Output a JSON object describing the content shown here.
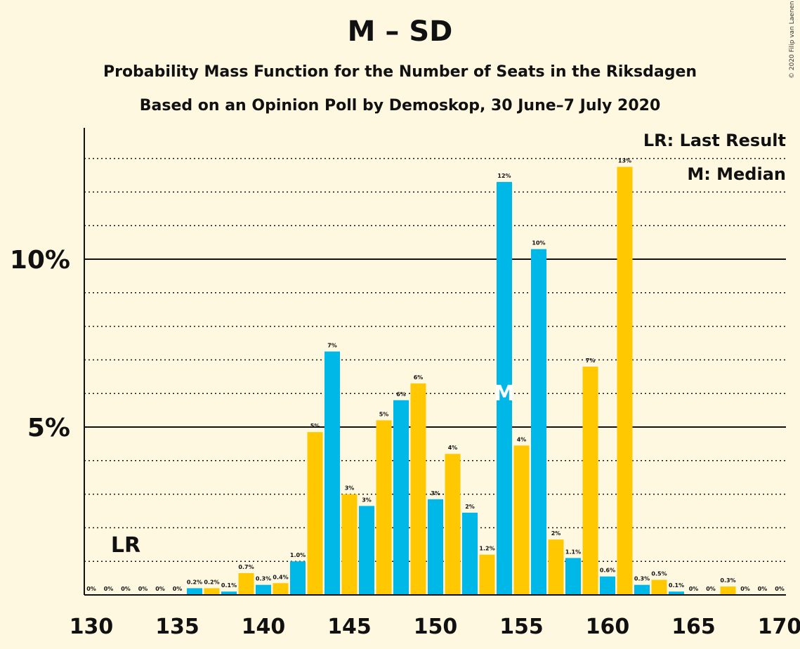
{
  "title": "M – SD",
  "subtitle1": "Probability Mass Function for the Number of Seats in the Riksdagen",
  "subtitle2": "Based on an Opinion Poll by Demoskop, 30 June–7 July 2020",
  "copyright": "© 2020 Filip van Laenen",
  "legend": {
    "last_result": "LR: Last Result",
    "median": "M: Median"
  },
  "colors": {
    "background": "#FFF8E1",
    "blue": "#00B8E8",
    "yellow": "#FFC800",
    "text": "#111111"
  },
  "chart_data": {
    "type": "bar",
    "x": [
      130,
      131,
      132,
      133,
      134,
      135,
      136,
      137,
      138,
      139,
      140,
      141,
      142,
      143,
      144,
      145,
      146,
      147,
      148,
      149,
      150,
      151,
      152,
      153,
      154,
      155,
      156,
      157,
      158,
      159,
      160,
      161,
      162,
      163,
      164,
      165,
      166,
      167,
      168,
      169,
      170
    ],
    "values": [
      0,
      0,
      0,
      0,
      0,
      0,
      0.2,
      0.2,
      0.1,
      0.65,
      0.3,
      0.35,
      1.0,
      4.85,
      7.25,
      3.0,
      2.65,
      5.2,
      5.8,
      6.3,
      2.85,
      4.2,
      2.45,
      1.2,
      12.3,
      4.45,
      10.3,
      1.65,
      1.1,
      6.8,
      0.55,
      12.75,
      0.3,
      0.45,
      0.1,
      0,
      0,
      0.25,
      0,
      0,
      0
    ],
    "labels": [
      "0%",
      "0%",
      "0%",
      "0%",
      "0%",
      "0%",
      "0.2%",
      "0.2%",
      "0.1%",
      "0.7%",
      "0.3%",
      "0.4%",
      "1.0%",
      "5%",
      "7%",
      "3%",
      "3%",
      "5%",
      "6%",
      "6%",
      "3%",
      "4%",
      "2%",
      "1.2%",
      "12%",
      "4%",
      "10%",
      "2%",
      "1.1%",
      "7%",
      "0.6%",
      "13%",
      "0.3%",
      "0.5%",
      "0.1%",
      "0%",
      "0%",
      "0.3%",
      "0%",
      "0%",
      "0%"
    ],
    "bar_colors": [
      "blue",
      "yellow"
    ],
    "x_ticks": [
      130,
      135,
      140,
      145,
      150,
      155,
      160,
      165,
      170
    ],
    "y_ticks": [
      "5%",
      "10%"
    ],
    "y_tick_values": [
      5,
      10
    ],
    "ylim": [
      0,
      13.9
    ],
    "grid": "dotted every 1%, solid at 5% and 10%",
    "last_result": {
      "seat": 132,
      "label": "LR"
    },
    "median": {
      "seat": 154,
      "label": "M"
    }
  }
}
